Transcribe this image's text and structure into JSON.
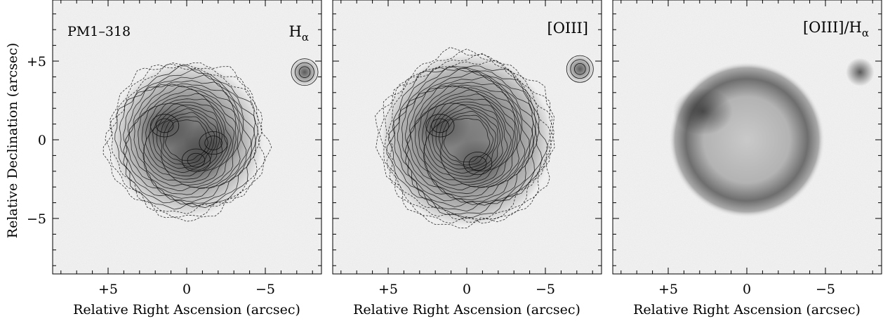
{
  "figure": {
    "object_label": "PM1–318",
    "ylabel": "Relative Declination (arcsec)",
    "xlabel": "Relative Right Ascension (arcsec)",
    "x_ticks": [
      "+5",
      "0",
      "−5"
    ],
    "y_ticks": [
      "+5",
      "0",
      "−5"
    ],
    "x_tick_values": [
      5,
      0,
      -5
    ],
    "y_tick_values": [
      5,
      0,
      -5
    ],
    "xlim": [
      8.5,
      -8.5
    ],
    "ylim": [
      -8.5,
      8.5
    ],
    "panels": [
      {
        "id": "halpha",
        "label_main": "H",
        "label_sub": "α",
        "show_object_label": true,
        "contours": true,
        "contour_count": 20,
        "nebula_radius_arcsec": 4.7,
        "peaks": [
          {
            "x": 1.4,
            "y": 0.9
          },
          {
            "x": -0.6,
            "y": -1.3
          },
          {
            "x": -1.7,
            "y": -0.2
          }
        ],
        "companion": {
          "x": -7.5,
          "y": 4.3
        }
      },
      {
        "id": "oiii",
        "label_main": "[OIII]",
        "label_sub": "",
        "show_object_label": false,
        "contours": true,
        "contour_count": 24,
        "nebula_radius_arcsec": 5.2,
        "peaks": [
          {
            "x": 1.7,
            "y": 0.9
          },
          {
            "x": -0.7,
            "y": -1.5
          }
        ],
        "companion": {
          "x": -7.2,
          "y": 4.5
        }
      },
      {
        "id": "ratio",
        "label_main": "[OIII]/H",
        "label_sub": "α",
        "show_object_label": false,
        "contours": false,
        "contour_count": 0,
        "nebula_radius_arcsec": 4.6,
        "peaks": [
          {
            "x": 2.8,
            "y": 1.8
          }
        ],
        "companion": {
          "x": -7.2,
          "y": 4.3
        }
      }
    ]
  }
}
